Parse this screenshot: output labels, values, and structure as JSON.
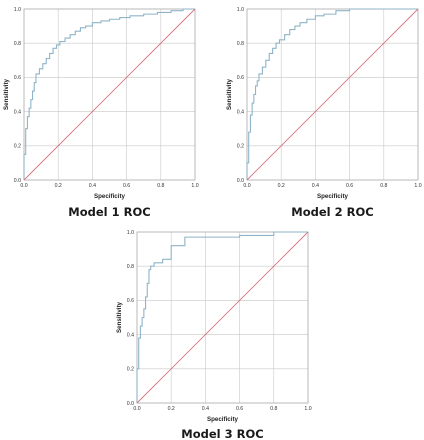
{
  "chart_data": [
    {
      "type": "line",
      "title": "Model 1 ROC",
      "xlabel": "Specificity",
      "ylabel": "Sensitivity",
      "xlim": [
        0,
        1.0
      ],
      "ylim": [
        0,
        1.0
      ],
      "x_ticks": [
        "0.0",
        "0.2",
        "0.4",
        "0.6",
        "0.8",
        "1.0"
      ],
      "y_ticks": [
        "0.0",
        "0.2",
        "0.4",
        "0.6",
        "0.8",
        "1.0"
      ],
      "grid": true,
      "series": [
        {
          "role": "roc-curve",
          "color": "#8fb4c8",
          "x": [
            0,
            0,
            0.01,
            0.01,
            0.02,
            0.02,
            0.03,
            0.03,
            0.04,
            0.04,
            0.05,
            0.05,
            0.06,
            0.06,
            0.07,
            0.07,
            0.09,
            0.09,
            0.11,
            0.11,
            0.13,
            0.13,
            0.15,
            0.15,
            0.17,
            0.17,
            0.19,
            0.19,
            0.21,
            0.21,
            0.24,
            0.24,
            0.27,
            0.27,
            0.3,
            0.3,
            0.33,
            0.33,
            0.36,
            0.36,
            0.4,
            0.4,
            0.45,
            0.45,
            0.5,
            0.5,
            0.56,
            0.56,
            0.62,
            0.62,
            0.7,
            0.7,
            0.78,
            0.78,
            0.86,
            0.86,
            0.93,
            0.93,
            1.0
          ],
          "y": [
            0,
            0.15,
            0.15,
            0.3,
            0.3,
            0.37,
            0.37,
            0.42,
            0.42,
            0.47,
            0.47,
            0.52,
            0.52,
            0.57,
            0.57,
            0.62,
            0.62,
            0.65,
            0.65,
            0.68,
            0.68,
            0.71,
            0.71,
            0.74,
            0.74,
            0.77,
            0.77,
            0.79,
            0.79,
            0.81,
            0.81,
            0.83,
            0.83,
            0.85,
            0.85,
            0.87,
            0.87,
            0.89,
            0.89,
            0.9,
            0.9,
            0.92,
            0.92,
            0.93,
            0.93,
            0.94,
            0.94,
            0.95,
            0.95,
            0.96,
            0.96,
            0.97,
            0.97,
            0.98,
            0.98,
            0.99,
            0.99,
            1.0,
            1.0
          ]
        },
        {
          "role": "reference-line",
          "color": "#d9707f",
          "x": [
            0,
            1
          ],
          "y": [
            0,
            1
          ]
        }
      ]
    },
    {
      "type": "line",
      "title": "Model 2 ROC",
      "xlabel": "Specificity",
      "ylabel": "Sensitivity",
      "xlim": [
        0,
        1.0
      ],
      "ylim": [
        0,
        1.0
      ],
      "x_ticks": [
        "0.0",
        "0.2",
        "0.4",
        "0.6",
        "0.8",
        "1.0"
      ],
      "y_ticks": [
        "0.0",
        "0.2",
        "0.4",
        "0.6",
        "0.8",
        "1.0"
      ],
      "grid": true,
      "series": [
        {
          "role": "roc-curve",
          "color": "#8fb4c8",
          "x": [
            0,
            0,
            0.01,
            0.01,
            0.02,
            0.02,
            0.03,
            0.03,
            0.04,
            0.04,
            0.05,
            0.05,
            0.06,
            0.06,
            0.07,
            0.07,
            0.09,
            0.09,
            0.11,
            0.11,
            0.13,
            0.13,
            0.15,
            0.15,
            0.17,
            0.17,
            0.19,
            0.19,
            0.22,
            0.22,
            0.25,
            0.25,
            0.28,
            0.28,
            0.31,
            0.31,
            0.35,
            0.35,
            0.4,
            0.4,
            0.45,
            0.45,
            0.52,
            0.52,
            0.6,
            0.6,
            1.0
          ],
          "y": [
            0,
            0.1,
            0.1,
            0.28,
            0.28,
            0.38,
            0.38,
            0.45,
            0.45,
            0.5,
            0.5,
            0.55,
            0.55,
            0.58,
            0.58,
            0.62,
            0.62,
            0.66,
            0.66,
            0.7,
            0.7,
            0.74,
            0.74,
            0.77,
            0.77,
            0.8,
            0.8,
            0.82,
            0.82,
            0.85,
            0.85,
            0.88,
            0.88,
            0.9,
            0.9,
            0.92,
            0.92,
            0.94,
            0.94,
            0.96,
            0.96,
            0.97,
            0.97,
            0.99,
            0.99,
            1.0,
            1.0
          ]
        },
        {
          "role": "reference-line",
          "color": "#d9707f",
          "x": [
            0,
            1
          ],
          "y": [
            0,
            1
          ]
        }
      ]
    },
    {
      "type": "line",
      "title": "Model 3 ROC",
      "xlabel": "Specificity",
      "ylabel": "Sensitivity",
      "xlim": [
        0,
        1.0
      ],
      "ylim": [
        0,
        1.0
      ],
      "x_ticks": [
        "0.0",
        "0.2",
        "0.4",
        "0.6",
        "0.8",
        "1.0"
      ],
      "y_ticks": [
        "0.0",
        "0.2",
        "0.4",
        "0.6",
        "0.8",
        "1.0"
      ],
      "grid": true,
      "series": [
        {
          "role": "roc-curve",
          "color": "#8fb4c8",
          "x": [
            0,
            0,
            0.01,
            0.01,
            0.02,
            0.02,
            0.03,
            0.03,
            0.04,
            0.04,
            0.05,
            0.05,
            0.06,
            0.06,
            0.07,
            0.07,
            0.08,
            0.08,
            0.1,
            0.1,
            0.15,
            0.15,
            0.2,
            0.2,
            0.28,
            0.28,
            0.6,
            0.6,
            0.8,
            0.8,
            1.0
          ],
          "y": [
            0,
            0.2,
            0.2,
            0.38,
            0.38,
            0.45,
            0.45,
            0.5,
            0.5,
            0.55,
            0.55,
            0.62,
            0.62,
            0.7,
            0.7,
            0.78,
            0.78,
            0.8,
            0.8,
            0.82,
            0.82,
            0.84,
            0.84,
            0.92,
            0.92,
            0.97,
            0.97,
            0.98,
            0.98,
            1.0,
            1.0
          ]
        },
        {
          "role": "reference-line",
          "color": "#d9707f",
          "x": [
            0,
            1
          ],
          "y": [
            0,
            1
          ]
        }
      ]
    }
  ],
  "style": {
    "grid_color": "#c8c8c8",
    "frame_color": "#b0b0b0",
    "text_color": "#222222"
  }
}
